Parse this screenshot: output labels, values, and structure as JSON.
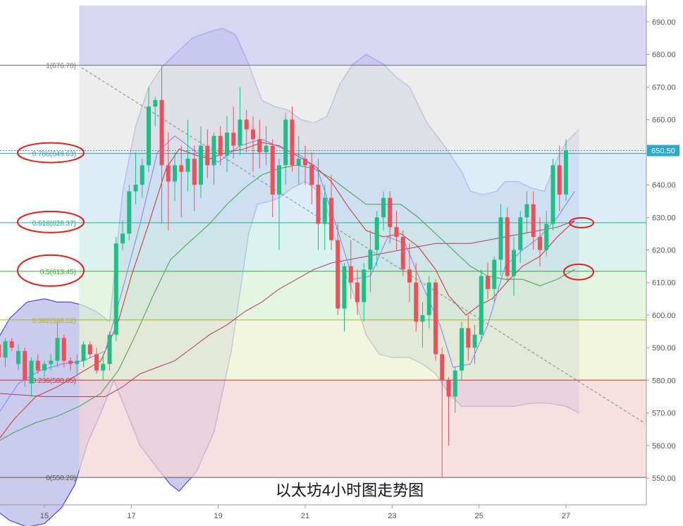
{
  "chart_data": {
    "type": "candlestick",
    "caption": "以太坊4小时图走势图",
    "price_label": "650.50",
    "y_axis": {
      "min": 545,
      "max": 695,
      "ticks": [
        550,
        560,
        570,
        580,
        590,
        600,
        610,
        620,
        630,
        640,
        650,
        660,
        670,
        680,
        690
      ]
    },
    "x_axis": {
      "ticks": [
        {
          "label": "15",
          "day": 15
        },
        {
          "label": "17",
          "day": 17
        },
        {
          "label": "19",
          "day": 19
        },
        {
          "label": "21",
          "day": 21
        },
        {
          "label": "23",
          "day": 23
        },
        {
          "label": "25",
          "day": 25
        },
        {
          "label": "27",
          "day": 27
        }
      ]
    },
    "colors": {
      "up": "#1ebe86",
      "down": "#ef4f5a",
      "upper_band": "#4a4ae0",
      "ma_red": "#cc3030",
      "ma_green": "#44a044",
      "ma_blue": "#8080ff",
      "trend": "#888888"
    },
    "fibonacci": [
      {
        "label": "1(676.70)",
        "price": 676.7,
        "color": "#707070"
      },
      {
        "label": "0.786(649.63)",
        "price": 649.63,
        "color": "#3399bb"
      },
      {
        "label": "0.618(628.37)",
        "price": 628.37,
        "color": "#20b090"
      },
      {
        "label": "0.5(613.45)",
        "price": 613.45,
        "color": "#30b030"
      },
      {
        "label": "0.382(598.52)",
        "price": 598.52,
        "color": "#a8b820"
      },
      {
        "label": "0.236(580.05)",
        "price": 580.05,
        "color": "#cc3030"
      },
      {
        "label": "0(550.20)",
        "price": 550.2,
        "color": "#555555"
      }
    ],
    "fib_start_day": 15.8,
    "highlight_levels": [
      649.63,
      628.37,
      613.45
    ],
    "candles": [
      [
        13.95,
        591,
        592,
        586,
        587
      ],
      [
        14.1,
        587,
        593,
        584,
        592
      ],
      [
        14.25,
        592,
        593,
        589,
        590
      ],
      [
        14.4,
        585,
        591,
        583,
        589
      ],
      [
        14.55,
        589,
        590,
        578,
        580
      ],
      [
        14.7,
        579,
        587,
        575,
        586
      ],
      [
        14.85,
        586,
        588,
        582,
        583
      ],
      [
        15.0,
        583,
        586,
        581,
        585
      ],
      [
        15.15,
        585,
        588,
        583,
        586
      ],
      [
        15.3,
        586,
        598,
        584,
        593
      ],
      [
        15.45,
        593,
        594,
        584,
        586
      ],
      [
        15.6,
        586,
        587,
        583,
        585
      ],
      [
        15.75,
        585,
        588,
        582,
        586
      ],
      [
        15.9,
        586,
        592,
        584,
        591
      ],
      [
        16.05,
        591,
        592,
        587,
        588
      ],
      [
        16.2,
        588,
        590,
        582,
        583
      ],
      [
        16.35,
        583,
        588,
        580,
        585
      ],
      [
        16.5,
        585,
        595,
        583,
        594
      ],
      [
        16.65,
        594,
        624,
        592,
        622
      ],
      [
        16.8,
        622,
        629,
        620,
        625
      ],
      [
        16.95,
        625,
        640,
        623,
        638
      ],
      [
        17.1,
        638,
        650,
        634,
        640
      ],
      [
        17.25,
        640,
        648,
        636,
        646
      ],
      [
        17.4,
        646,
        670,
        644,
        664
      ],
      [
        17.55,
        664,
        667,
        658,
        666
      ],
      [
        17.7,
        666,
        676.7,
        628,
        646
      ],
      [
        17.85,
        646,
        656,
        626,
        641
      ],
      [
        18.0,
        641,
        650,
        635,
        646
      ],
      [
        18.15,
        646,
        652,
        630,
        644
      ],
      [
        18.3,
        644,
        660,
        638,
        648
      ],
      [
        18.45,
        648,
        652,
        632,
        640
      ],
      [
        18.6,
        640,
        658,
        636,
        652
      ],
      [
        18.75,
        652,
        657,
        642,
        646
      ],
      [
        18.9,
        646,
        656,
        640,
        655
      ],
      [
        19.05,
        655,
        658,
        646,
        649
      ],
      [
        19.2,
        649,
        661,
        644,
        656
      ],
      [
        19.35,
        656,
        664,
        648,
        652
      ],
      [
        19.5,
        652,
        670,
        649,
        660
      ],
      [
        19.65,
        660,
        663,
        650,
        657
      ],
      [
        19.8,
        657,
        661,
        644,
        654
      ],
      [
        19.95,
        654,
        660,
        645,
        650
      ],
      [
        20.1,
        650,
        658,
        646,
        652
      ],
      [
        20.25,
        652,
        654,
        630,
        637
      ],
      [
        20.4,
        637,
        648,
        620,
        646
      ],
      [
        20.55,
        646,
        662,
        640,
        660
      ],
      [
        20.7,
        660,
        664,
        644,
        646
      ],
      [
        20.85,
        646,
        655,
        640,
        648
      ],
      [
        21.0,
        648,
        652,
        640,
        646
      ],
      [
        21.15,
        646,
        650,
        634,
        640
      ],
      [
        21.3,
        640,
        648,
        620,
        628
      ],
      [
        21.45,
        628,
        640,
        620,
        636
      ],
      [
        21.6,
        636,
        643,
        620,
        623
      ],
      [
        21.75,
        623,
        628,
        600,
        602
      ],
      [
        21.9,
        602,
        616,
        595,
        615
      ],
      [
        22.05,
        615,
        623,
        605,
        610
      ],
      [
        22.2,
        610,
        614,
        600,
        604
      ],
      [
        22.35,
        604,
        616,
        598,
        614
      ],
      [
        22.5,
        614,
        626,
        607,
        620
      ],
      [
        22.65,
        620,
        632,
        615,
        630
      ],
      [
        22.8,
        630,
        638,
        626,
        636
      ],
      [
        22.95,
        636,
        638,
        622,
        627
      ],
      [
        23.1,
        627,
        632,
        620,
        624
      ],
      [
        23.25,
        624,
        626,
        612,
        614
      ],
      [
        23.4,
        614,
        622,
        604,
        610
      ],
      [
        23.55,
        610,
        616,
        595,
        598
      ],
      [
        23.7,
        598,
        604,
        590,
        600
      ],
      [
        23.85,
        600,
        612,
        596,
        610
      ],
      [
        24.0,
        610,
        611,
        586,
        588
      ],
      [
        24.15,
        588,
        590,
        550.2,
        580
      ],
      [
        24.3,
        580,
        581,
        560,
        575
      ],
      [
        24.45,
        575,
        584,
        570,
        583
      ],
      [
        24.6,
        583,
        598,
        580,
        596
      ],
      [
        24.75,
        596,
        600,
        586,
        590
      ],
      [
        24.9,
        590,
        597,
        585,
        594
      ],
      [
        25.05,
        594,
        614,
        592,
        612
      ],
      [
        25.2,
        612,
        616,
        605,
        608
      ],
      [
        25.35,
        608,
        618,
        604,
        617
      ],
      [
        25.5,
        617,
        634,
        612,
        630
      ],
      [
        25.65,
        630,
        633,
        610,
        612
      ],
      [
        25.8,
        612,
        624,
        606,
        620
      ],
      [
        25.95,
        620,
        632,
        616,
        630
      ],
      [
        26.1,
        630,
        638,
        625,
        634
      ],
      [
        26.25,
        634,
        638,
        620,
        624
      ],
      [
        26.4,
        624,
        630,
        615,
        620
      ],
      [
        26.55,
        620,
        632,
        618,
        628
      ],
      [
        26.7,
        628,
        648,
        626,
        646
      ],
      [
        26.85,
        646,
        652,
        632,
        637
      ],
      [
        27.0,
        637,
        654,
        635,
        650.5
      ]
    ]
  }
}
